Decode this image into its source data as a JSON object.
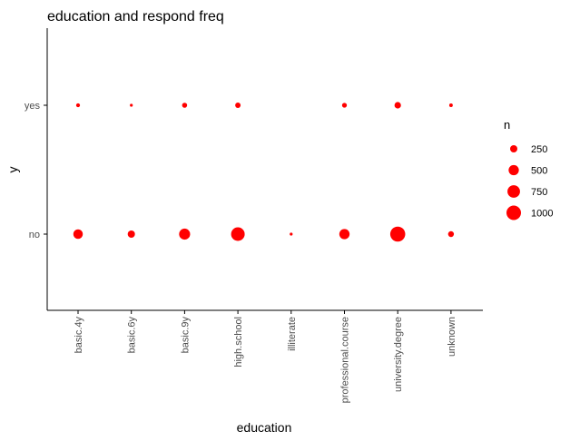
{
  "chart_data": {
    "type": "scatter",
    "title": "education and respond freq",
    "xlabel": "education",
    "ylabel": "y",
    "categories": [
      "basic.4y",
      "basic.6y",
      "basic.9y",
      "high.school",
      "illiterate",
      "professional.course",
      "university.degree",
      "unknown"
    ],
    "y_categories": [
      "no",
      "yes"
    ],
    "points": [
      {
        "x": "basic.4y",
        "y": "yes",
        "n": 70
      },
      {
        "x": "basic.6y",
        "y": "yes",
        "n": 40
      },
      {
        "x": "basic.9y",
        "y": "yes",
        "n": 120
      },
      {
        "x": "high.school",
        "y": "yes",
        "n": 140
      },
      {
        "x": "professional.course",
        "y": "yes",
        "n": 110
      },
      {
        "x": "university.degree",
        "y": "yes",
        "n": 200
      },
      {
        "x": "unknown",
        "y": "yes",
        "n": 60
      },
      {
        "x": "basic.4y",
        "y": "no",
        "n": 430
      },
      {
        "x": "basic.6y",
        "y": "no",
        "n": 250
      },
      {
        "x": "basic.9y",
        "y": "no",
        "n": 580
      },
      {
        "x": "high.school",
        "y": "no",
        "n": 880
      },
      {
        "x": "illiterate",
        "y": "no",
        "n": 5
      },
      {
        "x": "professional.course",
        "y": "no",
        "n": 500
      },
      {
        "x": "university.degree",
        "y": "no",
        "n": 1070
      },
      {
        "x": "unknown",
        "y": "no",
        "n": 160
      }
    ],
    "size_legend": {
      "title": "n",
      "values": [
        250,
        500,
        750,
        1000
      ],
      "labels": [
        "250",
        "500",
        "750",
        "1000"
      ]
    },
    "point_color": "#ff0000",
    "axis_color": "#000000",
    "tick_label_color": "#4d4d4d",
    "grid": false,
    "legend_position": "right"
  }
}
